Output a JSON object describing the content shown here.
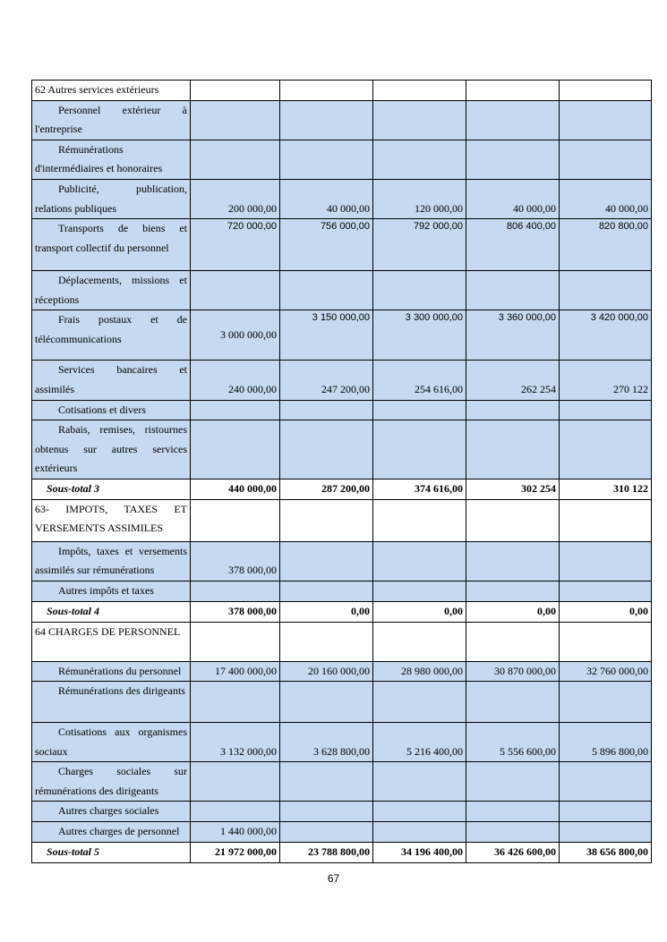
{
  "table": {
    "rows": [
      {
        "label": "62 Autres services extérieurs",
        "values": [
          null,
          null,
          null,
          null,
          null
        ]
      },
      {
        "label": "Personnel extérieur à l'entreprise",
        "values": [
          null,
          null,
          null,
          null,
          null
        ]
      },
      {
        "label": "Rémunérations d'intermédiaires et honoraires",
        "values": [
          null,
          null,
          null,
          null,
          null
        ]
      },
      {
        "label": "Publicité, publication, relations publiques",
        "values": [
          "200 000,00",
          "40 000,00",
          "120 000,00",
          "40 000,00",
          "40 000,00"
        ]
      },
      {
        "label": "Transports de biens et transport collectif du personnel",
        "values": [
          "720 000,00",
          "756 000,00",
          "792 000,00",
          "806 400,00",
          "820 800,00"
        ]
      },
      {
        "label": "Déplacements, missions et réceptions",
        "values": [
          null,
          null,
          null,
          null,
          null
        ]
      },
      {
        "label": "Frais postaux et de télécommunications",
        "values": [
          "3 000 000,00",
          "3 150 000,00",
          "3 300 000,00",
          "3 360 000,00",
          "3 420 000,00"
        ]
      },
      {
        "label": "Services bancaires et assimilés",
        "values": [
          "240 000,00",
          "247 200,00",
          "254 616,00",
          "262 254",
          "270 122"
        ]
      },
      {
        "label": "Cotisations et divers",
        "values": [
          null,
          null,
          null,
          null,
          null
        ]
      },
      {
        "label": "Rabais, remises, ristournes obtenus sur autres services extérieurs",
        "values": [
          null,
          null,
          null,
          null,
          null
        ]
      },
      {
        "label": "Sous-total 3",
        "values": [
          "440 000,00",
          "287 200,00",
          "374 616,00",
          "302 254",
          "310 122"
        ]
      },
      {
        "label": "63- IMPOTS, TAXES ET VERSEMENTS ASSIMILES",
        "values": [
          null,
          null,
          null,
          null,
          null
        ]
      },
      {
        "label": "Impôts, taxes et versements assimilés sur rémunérations",
        "values": [
          "378 000,00",
          null,
          null,
          null,
          null
        ]
      },
      {
        "label": "Autres impôts et taxes",
        "values": [
          null,
          null,
          null,
          null,
          null
        ]
      },
      {
        "label": "Sous-total 4",
        "values": [
          "378 000,00",
          "0,00",
          "0,00",
          "0,00",
          "0,00"
        ]
      },
      {
        "label": "64 CHARGES DE PERSONNEL",
        "values": [
          null,
          null,
          null,
          null,
          null
        ]
      },
      {
        "label": "Rémunérations du personnel",
        "values": [
          "17 400 000,00",
          "20 160 000,00",
          "28 980 000,00",
          "30 870 000,00",
          "32 760 000,00"
        ]
      },
      {
        "label": "Rémunérations des dirigeants",
        "values": [
          null,
          null,
          null,
          null,
          null
        ]
      },
      {
        "label": "Cotisations aux organismes sociaux",
        "values": [
          "3 132 000,00",
          "3 628 800,00",
          "5 216 400,00",
          "5 556 600,00",
          "5 896 800,00"
        ]
      },
      {
        "label": "Charges sociales sur rémunérations des dirigeants",
        "values": [
          null,
          null,
          null,
          null,
          null
        ]
      },
      {
        "label": "Autres charges sociales",
        "values": [
          null,
          null,
          null,
          null,
          null
        ]
      },
      {
        "label": "Autres charges de personnel",
        "values": [
          "1 440 000,00",
          null,
          null,
          null,
          null
        ]
      },
      {
        "label": "Sous-total 5",
        "values": [
          "21 972 000,00",
          "23 788 800,00",
          "34 196 400,00",
          "36 426 600,00",
          "38 656 800,00"
        ]
      }
    ]
  },
  "footer": {
    "page_number": "67"
  }
}
